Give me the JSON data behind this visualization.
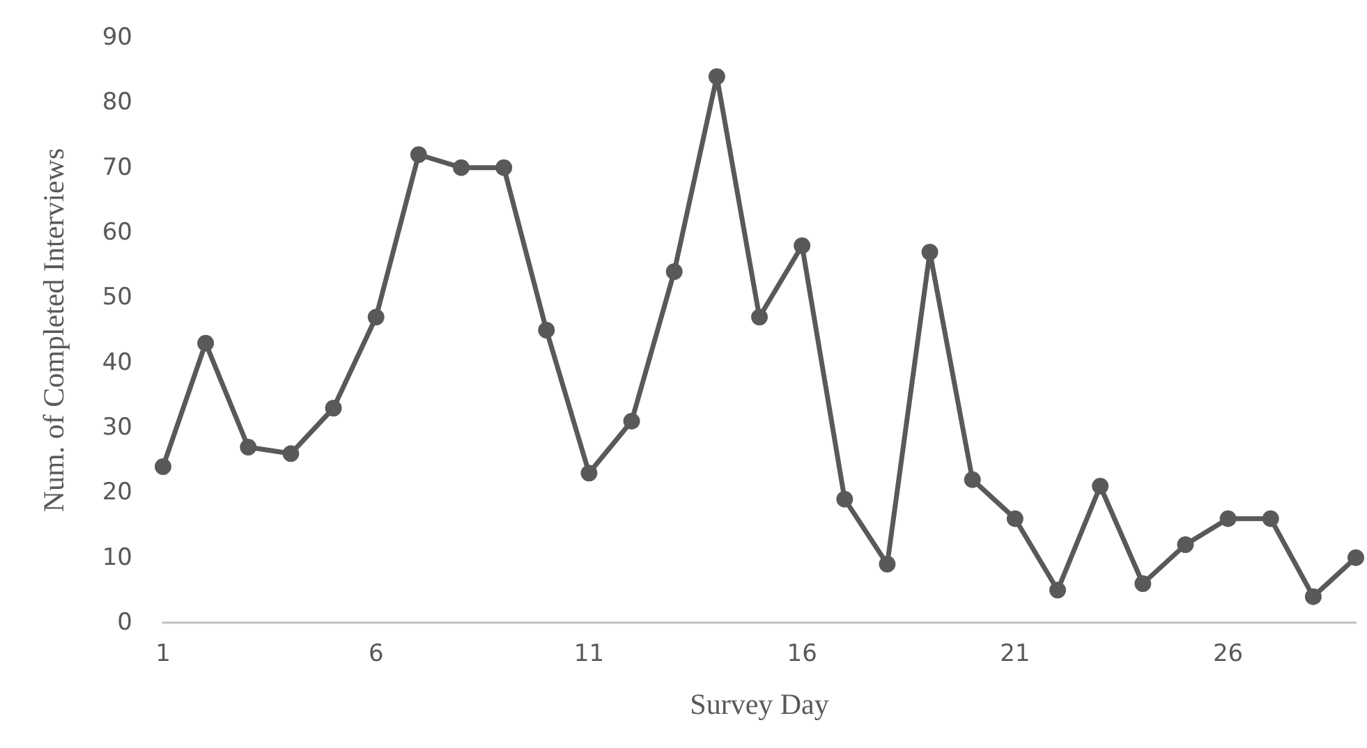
{
  "chart_data": {
    "type": "line",
    "xlabel": "Survey Day",
    "ylabel": "Num. of Completed Interviews",
    "x": [
      1,
      2,
      3,
      4,
      5,
      6,
      7,
      8,
      9,
      10,
      11,
      12,
      13,
      14,
      15,
      16,
      17,
      18,
      19,
      20,
      21,
      22,
      23,
      24,
      25,
      26,
      27,
      28,
      29
    ],
    "series": [
      {
        "color": "#595959",
        "values": [
          24,
          43,
          27,
          26,
          33,
          47,
          72,
          70,
          70,
          45,
          23,
          31,
          54,
          84,
          47,
          58,
          19,
          9,
          57,
          22,
          16,
          5,
          21,
          6,
          12,
          16,
          16,
          4,
          10
        ]
      }
    ],
    "xlim": [
      1,
      29
    ],
    "xticks": [
      1,
      6,
      11,
      16,
      21,
      26
    ],
    "ylim": [
      0,
      90
    ],
    "yticks": [
      0,
      10,
      20,
      30,
      40,
      50,
      60,
      70,
      80,
      90
    ],
    "grid": false,
    "marker": "circle",
    "line_style": "solid"
  }
}
